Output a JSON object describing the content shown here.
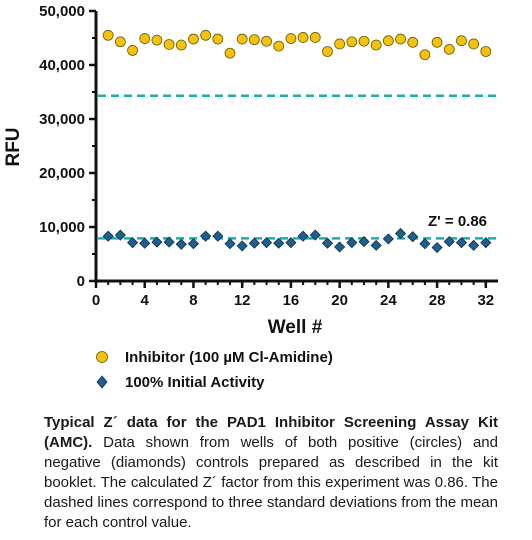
{
  "chart_data": {
    "type": "scatter",
    "xlabel": "Well #",
    "ylabel": "RFU",
    "xlim": [
      0,
      33
    ],
    "ylim": [
      0,
      50000
    ],
    "xticks": [
      0,
      4,
      8,
      12,
      16,
      20,
      24,
      28,
      32
    ],
    "yticks": [
      0,
      10000,
      20000,
      30000,
      40000,
      50000
    ],
    "xtick_labels": [
      "0",
      "4",
      "8",
      "12",
      "16",
      "20",
      "24",
      "28",
      "32"
    ],
    "ytick_labels": [
      "0",
      "10,000",
      "20,000",
      "30,000",
      "40,000",
      "50,000"
    ],
    "legend_position": "below",
    "grid": false,
    "series": [
      {
        "name": "Inhibitor (100 µM Cl-Amidine)",
        "marker": "circle",
        "color": "#F4C20D",
        "x": [
          1,
          2,
          3,
          4,
          5,
          6,
          7,
          8,
          9,
          10,
          11,
          12,
          13,
          14,
          15,
          16,
          17,
          18,
          19,
          20,
          21,
          22,
          23,
          24,
          25,
          26,
          27,
          28,
          29,
          30,
          31,
          32
        ],
        "y": [
          45500,
          44300,
          42700,
          44900,
          44600,
          43800,
          43700,
          44800,
          45500,
          44800,
          42200,
          44800,
          44700,
          44400,
          43500,
          44900,
          45100,
          45100,
          42500,
          43900,
          44300,
          44400,
          43700,
          44500,
          44800,
          44200,
          41900,
          44200,
          42900,
          44500,
          43900,
          42500
        ]
      },
      {
        "name": "100% Initial Activity",
        "marker": "diamond",
        "color": "#1F5F8B",
        "x": [
          1,
          2,
          3,
          4,
          5,
          6,
          7,
          8,
          9,
          10,
          11,
          12,
          13,
          14,
          15,
          16,
          17,
          18,
          19,
          20,
          21,
          22,
          23,
          24,
          25,
          26,
          27,
          28,
          29,
          30,
          31,
          32
        ],
        "y": [
          8300,
          8500,
          7100,
          7000,
          7200,
          7200,
          6800,
          6900,
          8300,
          8300,
          6900,
          6500,
          7000,
          7100,
          7000,
          7100,
          8300,
          8500,
          7000,
          6300,
          7100,
          7300,
          6600,
          7800,
          8800,
          8200,
          6900,
          6200,
          7300,
          7100,
          6600,
          7100
        ]
      }
    ],
    "reference_lines": [
      34300,
      7900
    ],
    "annotation": "Z' = 0.86"
  },
  "caption": {
    "bold": "Typical Z´ data for the PAD1 Inhibitor Screening Assay Kit (AMC).",
    "text": " Data shown from wells of both positive (circles) and negative (diamonds) controls prepared as described in the kit booklet. The calculated Z´ factor from this experiment was 0.86. The dashed lines correspond to three standard deviations from the mean for each control value."
  },
  "colors": {
    "reference_line": "#1AAFA8",
    "axis": "#111111"
  }
}
